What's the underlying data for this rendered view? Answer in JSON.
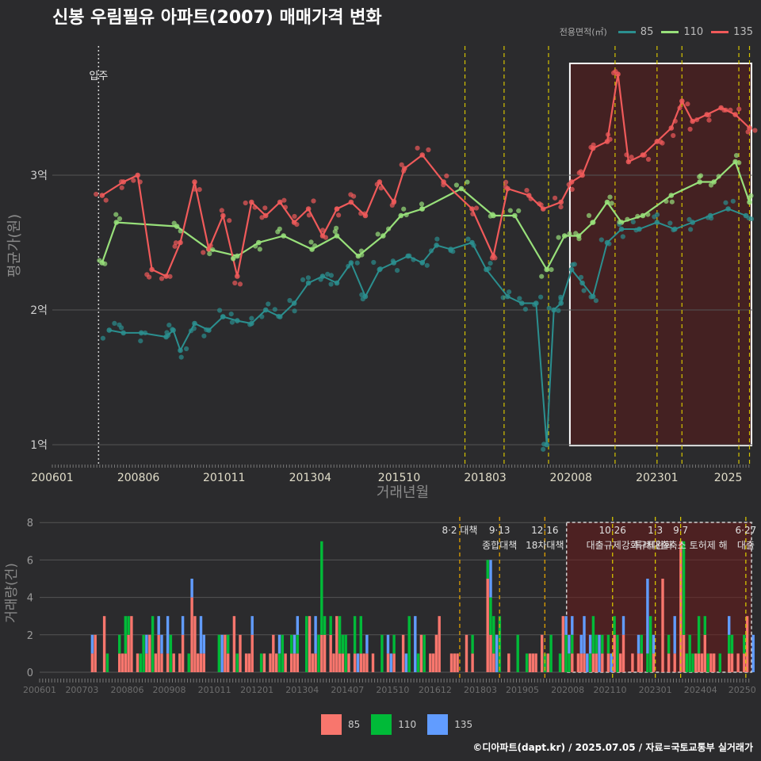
{
  "title": "신봉 우림필유 아파트(2007) 매매가격 변화",
  "footer": "©디아파트(dapt.kr) / 2025.07.05 / 자료=국토교통부 실거래가",
  "colors": {
    "s85_line": "#2b8f8f",
    "s110_line": "#98e07a",
    "s135_line": "#f05a5a",
    "bar85": "#f8766d",
    "bar110": "#00ba38",
    "bar135": "#619cff",
    "event": "#d4c200",
    "event2": "#e0a000"
  },
  "chart_data": [
    {
      "type": "line",
      "title": "신봉 우림필유 아파트(2007) 매매가격 변화",
      "xlabel": "거래년월",
      "ylabel": "평균가(원)",
      "legend_title": "전용면적(㎡)",
      "legend_position": "top-right",
      "x_tick_labels": [
        "200601",
        "200806",
        "201011",
        "201304",
        "201510",
        "201803",
        "202008",
        "202301",
        "2025"
      ],
      "y_tick_labels": [
        "1억",
        "2억",
        "3억"
      ],
      "ylim": [
        0.9,
        4.0
      ],
      "grid": true,
      "annotations": {
        "move_in": "입주"
      },
      "series": [
        {
          "name": "85",
          "points": [
            [
              2007.6,
              1.85
            ],
            [
              2008.0,
              1.83
            ],
            [
              2008.5,
              1.83
            ],
            [
              2009.2,
              1.8
            ],
            [
              2009.4,
              1.85
            ],
            [
              2009.6,
              1.7
            ],
            [
              2010.0,
              1.9
            ],
            [
              2010.4,
              1.85
            ],
            [
              2010.8,
              1.95
            ],
            [
              2011.2,
              1.92
            ],
            [
              2011.6,
              1.9
            ],
            [
              2012.0,
              2.0
            ],
            [
              2012.4,
              1.95
            ],
            [
              2012.8,
              2.05
            ],
            [
              2013.2,
              2.2
            ],
            [
              2013.6,
              2.25
            ],
            [
              2014.0,
              2.2
            ],
            [
              2014.4,
              2.35
            ],
            [
              2014.8,
              2.1
            ],
            [
              2015.2,
              2.3
            ],
            [
              2015.6,
              2.35
            ],
            [
              2016.0,
              2.4
            ],
            [
              2016.4,
              2.35
            ],
            [
              2016.8,
              2.48
            ],
            [
              2017.2,
              2.45
            ],
            [
              2017.8,
              2.5
            ],
            [
              2018.2,
              2.3
            ],
            [
              2018.8,
              2.1
            ],
            [
              2019.2,
              2.05
            ],
            [
              2019.6,
              2.05
            ],
            [
              2019.9,
              1.0
            ],
            [
              2020.1,
              2.0
            ],
            [
              2020.3,
              2.05
            ],
            [
              2020.6,
              2.3
            ],
            [
              2020.9,
              2.2
            ],
            [
              2021.2,
              2.1
            ],
            [
              2021.6,
              2.5
            ],
            [
              2022.0,
              2.6
            ],
            [
              2022.5,
              2.6
            ],
            [
              2023.0,
              2.65
            ],
            [
              2023.5,
              2.6
            ],
            [
              2024.0,
              2.65
            ],
            [
              2024.5,
              2.7
            ],
            [
              2025.0,
              2.75
            ],
            [
              2025.5,
              2.7
            ]
          ]
        },
        {
          "name": "110",
          "points": [
            [
              2007.4,
              2.35
            ],
            [
              2007.8,
              2.65
            ],
            [
              2009.5,
              2.62
            ],
            [
              2010.4,
              2.45
            ],
            [
              2011.2,
              2.4
            ],
            [
              2011.8,
              2.5
            ],
            [
              2012.5,
              2.55
            ],
            [
              2013.3,
              2.45
            ],
            [
              2014.0,
              2.55
            ],
            [
              2014.6,
              2.4
            ],
            [
              2015.3,
              2.55
            ],
            [
              2015.8,
              2.7
            ],
            [
              2016.4,
              2.75
            ],
            [
              2017.5,
              2.9
            ],
            [
              2018.4,
              2.7
            ],
            [
              2019.0,
              2.7
            ],
            [
              2019.9,
              2.3
            ],
            [
              2020.4,
              2.55
            ],
            [
              2020.8,
              2.55
            ],
            [
              2021.2,
              2.65
            ],
            [
              2021.6,
              2.8
            ],
            [
              2022.0,
              2.65
            ],
            [
              2022.6,
              2.7
            ],
            [
              2023.4,
              2.85
            ],
            [
              2024.2,
              2.95
            ],
            [
              2024.6,
              2.95
            ],
            [
              2025.2,
              3.1
            ],
            [
              2025.6,
              2.8
            ]
          ]
        },
        {
          "name": "135",
          "points": [
            [
              2007.4,
              2.85
            ],
            [
              2008.0,
              2.95
            ],
            [
              2008.4,
              3.0
            ],
            [
              2008.8,
              2.3
            ],
            [
              2009.2,
              2.25
            ],
            [
              2009.6,
              2.5
            ],
            [
              2010.0,
              2.95
            ],
            [
              2010.4,
              2.45
            ],
            [
              2010.8,
              2.7
            ],
            [
              2011.2,
              2.25
            ],
            [
              2011.6,
              2.8
            ],
            [
              2012.0,
              2.7
            ],
            [
              2012.4,
              2.8
            ],
            [
              2012.8,
              2.65
            ],
            [
              2013.2,
              2.75
            ],
            [
              2013.6,
              2.55
            ],
            [
              2014.0,
              2.75
            ],
            [
              2014.4,
              2.8
            ],
            [
              2014.8,
              2.7
            ],
            [
              2015.2,
              2.95
            ],
            [
              2015.6,
              2.8
            ],
            [
              2015.9,
              3.05
            ],
            [
              2016.4,
              3.15
            ],
            [
              2017.0,
              2.95
            ],
            [
              2017.8,
              2.75
            ],
            [
              2018.4,
              2.4
            ],
            [
              2018.8,
              2.9
            ],
            [
              2019.4,
              2.85
            ],
            [
              2019.8,
              2.75
            ],
            [
              2020.3,
              2.8
            ],
            [
              2020.6,
              2.95
            ],
            [
              2020.9,
              3.0
            ],
            [
              2021.2,
              3.2
            ],
            [
              2021.6,
              3.25
            ],
            [
              2021.9,
              3.75
            ],
            [
              2022.2,
              3.1
            ],
            [
              2022.6,
              3.15
            ],
            [
              2023.0,
              3.25
            ],
            [
              2023.4,
              3.35
            ],
            [
              2023.7,
              3.55
            ],
            [
              2024.0,
              3.4
            ],
            [
              2024.4,
              3.45
            ],
            [
              2024.8,
              3.5
            ],
            [
              2025.2,
              3.45
            ],
            [
              2025.6,
              3.35
            ]
          ]
        }
      ]
    },
    {
      "type": "bar",
      "xlabel": "",
      "ylabel": "거래량(건)",
      "legend_position": "bottom",
      "x_tick_labels": [
        "200601",
        "200703",
        "200806",
        "200908",
        "201011",
        "201201",
        "201304",
        "201407",
        "201510",
        "201612",
        "201803",
        "201905",
        "202008",
        "202110",
        "202301",
        "202404",
        "20250"
      ],
      "y_tick_labels": [
        "0",
        "2",
        "4",
        "6",
        "8"
      ],
      "ylim": [
        0,
        8
      ],
      "series_names": [
        "85",
        "110",
        "135"
      ],
      "annotations": [
        {
          "date": 2017.6,
          "label": "8·2 대책"
        },
        {
          "date": 2018.7,
          "label": "9·13",
          "label2": "종합대책"
        },
        {
          "date": 2019.95,
          "label": "12·16",
          "label2": "18차대책"
        },
        {
          "date": 2021.82,
          "label": "10·26",
          "label2": "대출규제강화"
        },
        {
          "date": 2023.0,
          "label": "1·3",
          "label2": "규제완화"
        },
        {
          "date": 2023.7,
          "label": "9·7",
          "label2": "특례대출축소 토허제 해"
        },
        {
          "date": 2025.5,
          "label": "6·27",
          "label2": "대출"
        }
      ]
    }
  ]
}
